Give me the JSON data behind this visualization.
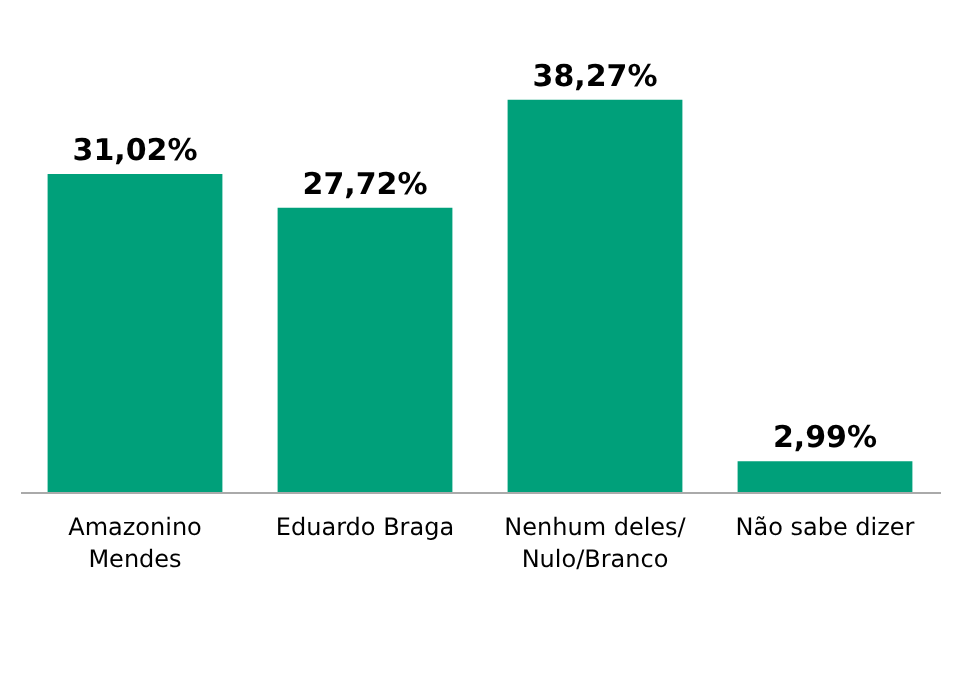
{
  "chart_data": {
    "type": "bar",
    "categories": [
      "Amazonino Mendes",
      "Eduardo Braga",
      "Nenhum deles/Nulo/Branco",
      "Não sabe dizer"
    ],
    "values": [
      31.02,
      27.72,
      38.27,
      2.99
    ],
    "value_labels": [
      "31,02%",
      "27,72%",
      "38,27%",
      "2,99%"
    ],
    "color": "#00a07a"
  }
}
